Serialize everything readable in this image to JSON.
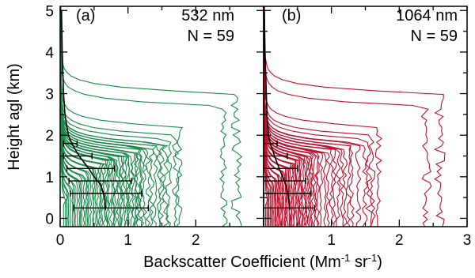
{
  "colors": {
    "green": "#1a8a4a",
    "red": "#c0102e",
    "mean": "#000000"
  },
  "axes": {
    "ylabel": "Height agl (km)",
    "xlabel_main": "Backscatter Coefficient (Mm",
    "xlabel_sup1": "-1",
    "xlabel_mid": " sr",
    "xlabel_sup2": "-1",
    "xlabel_end": ")",
    "yticks": [
      "0",
      "1",
      "2",
      "3",
      "4",
      "5"
    ],
    "xticks_left": [
      "0",
      "1",
      "2"
    ],
    "xticks_right": [
      "1",
      "2",
      "3"
    ]
  },
  "chart_data": [
    {
      "type": "line",
      "panel": "(a)",
      "wavelength": "532 nm",
      "n_label": "N = 59",
      "xlim": [
        0,
        3
      ],
      "ylim": [
        -0.2,
        5.1
      ],
      "grid": false,
      "n_profiles": 59,
      "series_color": "green",
      "profile_surface_values": [
        0.05,
        0.08,
        0.1,
        0.12,
        0.15,
        0.18,
        0.2,
        0.22,
        0.25,
        0.28,
        0.3,
        0.32,
        0.35,
        0.38,
        0.4,
        0.42,
        0.45,
        0.48,
        0.5,
        0.52,
        0.55,
        0.58,
        0.6,
        0.62,
        0.65,
        0.68,
        0.7,
        0.72,
        0.75,
        0.78,
        0.8,
        0.82,
        0.85,
        0.88,
        0.9,
        0.92,
        0.95,
        0.98,
        1.0,
        1.02,
        1.05,
        1.08,
        1.1,
        1.12,
        1.15,
        1.18,
        1.2,
        1.25,
        1.3,
        1.35,
        1.4,
        1.45,
        1.5,
        1.55,
        1.6,
        1.7,
        1.75,
        2.4,
        2.6
      ],
      "profile_top_heights": [
        0.4,
        0.5,
        0.6,
        0.6,
        0.7,
        0.7,
        0.8,
        0.8,
        0.9,
        0.9,
        0.9,
        1.0,
        1.0,
        1.0,
        1.1,
        1.1,
        1.1,
        1.2,
        1.2,
        1.2,
        1.2,
        1.3,
        1.3,
        1.3,
        1.3,
        1.4,
        1.4,
        1.4,
        1.4,
        1.4,
        1.45,
        1.45,
        1.45,
        1.5,
        1.5,
        1.5,
        1.5,
        1.5,
        1.55,
        1.55,
        1.55,
        1.6,
        1.6,
        1.6,
        1.6,
        1.65,
        1.65,
        1.7,
        1.7,
        1.7,
        1.75,
        1.75,
        1.8,
        1.8,
        1.9,
        2.0,
        2.2,
        2.7,
        3.0
      ],
      "mean_profile": {
        "heights": [
          0.2,
          0.5,
          0.8,
          1.0,
          1.2,
          1.5,
          1.8,
          2.0,
          2.5,
          3.0,
          4.0,
          5.0
        ],
        "values": [
          0.67,
          0.66,
          0.6,
          0.5,
          0.42,
          0.28,
          0.17,
          0.12,
          0.07,
          0.05,
          0.03,
          0.02
        ]
      },
      "error_bars": {
        "heights": [
          0.25,
          0.6,
          0.9,
          1.2,
          1.5,
          1.8
        ],
        "mean": [
          0.67,
          0.66,
          0.58,
          0.45,
          0.27,
          0.14
        ],
        "xmin": [
          0.2,
          0.15,
          0.13,
          0.1,
          0.05,
          0.05
        ],
        "xmax": [
          1.3,
          1.2,
          1.05,
          0.8,
          0.47,
          0.25
        ]
      }
    },
    {
      "type": "line",
      "panel": "(b)",
      "wavelength": "1064 nm",
      "n_label": "N = 59",
      "xlim": [
        0,
        3
      ],
      "ylim": [
        -0.2,
        5.1
      ],
      "grid": false,
      "n_profiles": 59,
      "series_color": "red",
      "profile_surface_values": [
        0.03,
        0.05,
        0.07,
        0.08,
        0.1,
        0.12,
        0.13,
        0.15,
        0.17,
        0.18,
        0.2,
        0.22,
        0.23,
        0.25,
        0.27,
        0.28,
        0.3,
        0.32,
        0.33,
        0.35,
        0.37,
        0.38,
        0.4,
        0.42,
        0.44,
        0.46,
        0.48,
        0.5,
        0.52,
        0.54,
        0.56,
        0.58,
        0.6,
        0.62,
        0.64,
        0.66,
        0.68,
        0.7,
        0.72,
        0.75,
        0.78,
        0.8,
        0.85,
        0.9,
        0.95,
        1.0,
        1.05,
        1.1,
        1.15,
        1.2,
        1.25,
        1.3,
        1.4,
        1.5,
        1.55,
        1.6,
        1.7,
        2.4,
        2.6
      ],
      "profile_top_heights": [
        0.4,
        0.5,
        0.6,
        0.6,
        0.7,
        0.7,
        0.8,
        0.8,
        0.9,
        0.9,
        0.9,
        1.0,
        1.0,
        1.0,
        1.1,
        1.1,
        1.1,
        1.2,
        1.2,
        1.2,
        1.2,
        1.3,
        1.3,
        1.3,
        1.3,
        1.4,
        1.4,
        1.4,
        1.4,
        1.4,
        1.45,
        1.45,
        1.45,
        1.5,
        1.5,
        1.5,
        1.5,
        1.5,
        1.55,
        1.55,
        1.55,
        1.6,
        1.6,
        1.6,
        1.6,
        1.65,
        1.65,
        1.7,
        1.7,
        1.7,
        1.75,
        1.75,
        1.8,
        1.8,
        1.9,
        2.0,
        2.2,
        2.7,
        3.0
      ],
      "mean_profile": {
        "heights": [
          0.2,
          0.5,
          0.8,
          1.0,
          1.2,
          1.5,
          1.8,
          2.0,
          2.5,
          3.0,
          4.0,
          5.0
        ],
        "values": [
          0.38,
          0.37,
          0.33,
          0.28,
          0.23,
          0.16,
          0.1,
          0.07,
          0.05,
          0.04,
          0.02,
          0.01
        ]
      },
      "error_bars": {
        "heights": [
          0.25,
          0.6,
          0.9,
          1.2,
          1.5,
          1.8
        ],
        "mean": [
          0.38,
          0.37,
          0.32,
          0.25,
          0.16,
          0.09
        ],
        "xmin": [
          0.0,
          0.0,
          0.0,
          0.0,
          0.0,
          0.0
        ],
        "xmax": [
          0.75,
          0.7,
          0.62,
          0.5,
          0.35,
          0.2
        ]
      }
    }
  ]
}
